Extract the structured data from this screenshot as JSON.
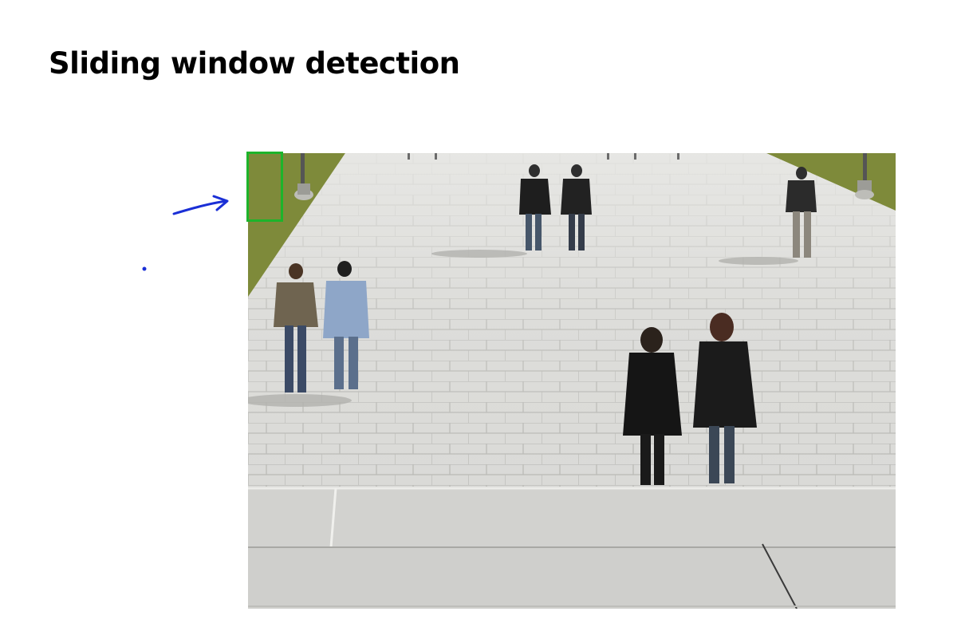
{
  "slide": {
    "title": "Sliding window detection"
  },
  "photo": {
    "subject": "pedestrians walking on a paved plaza",
    "pavement_color": "#d9d9d6",
    "grass_color": "#7e8a3a"
  },
  "annotation": {
    "window_color": "#1db42b",
    "ink_color": "#1a2fd6"
  }
}
